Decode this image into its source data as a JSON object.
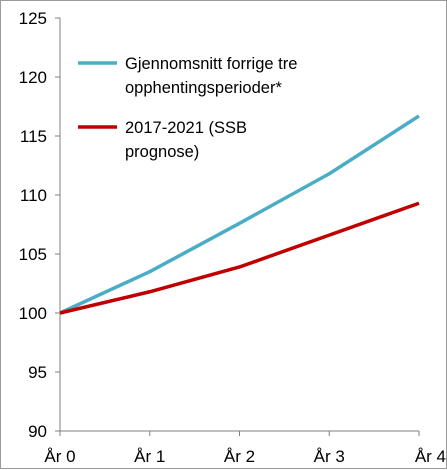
{
  "chart_data": {
    "type": "line",
    "categories": [
      "År 0",
      "År 1",
      "År 2",
      "År 3",
      "År 4"
    ],
    "ylim": [
      90,
      125
    ],
    "yticks": [
      90,
      95,
      100,
      105,
      110,
      115,
      120,
      125
    ],
    "grid": false,
    "legend_position": "top-left inside",
    "series": [
      {
        "name_lines": [
          "Gjennomsnitt forrige tre",
          "opphentingsperioder*"
        ],
        "color": "#4BACC6",
        "values": [
          100.0,
          103.5,
          107.6,
          111.8,
          116.7
        ]
      },
      {
        "name_lines": [
          "2017-2021 (SSB",
          "prognose)"
        ],
        "color": "#C00000",
        "values": [
          100.0,
          101.8,
          103.9,
          106.6,
          109.3
        ]
      }
    ]
  }
}
